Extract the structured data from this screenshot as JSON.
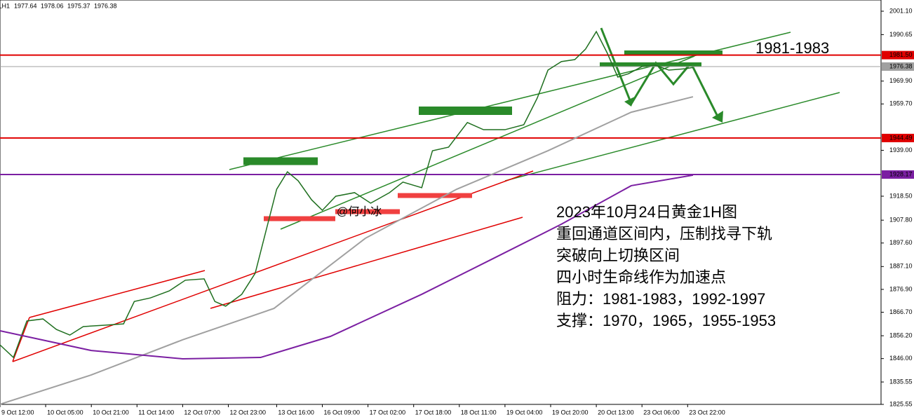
{
  "chart_data": {
    "type": "line",
    "header": {
      "label": ",H1",
      "ohlc": [
        1977.64,
        1978.06,
        1975.37,
        1976.38
      ]
    },
    "xlim": [
      0,
      328
    ],
    "ylim": [
      1825.55,
      2001.1
    ],
    "xticks": [
      {
        "value": 0,
        "label": "9 Oct 12:00"
      },
      {
        "value": 17,
        "label": "10 Oct 05:00"
      },
      {
        "value": 34,
        "label": "10 Oct 21:00"
      },
      {
        "value": 51,
        "label": "11 Oct 14:00"
      },
      {
        "value": 68,
        "label": "12 Oct 07:00"
      },
      {
        "value": 85,
        "label": "12 Oct 23:00"
      },
      {
        "value": 103,
        "label": "13 Oct 16:00"
      },
      {
        "value": 120,
        "label": "16 Oct 09:00"
      },
      {
        "value": 137,
        "label": "17 Oct 02:00"
      },
      {
        "value": 154,
        "label": "17 Oct 18:00"
      },
      {
        "value": 171,
        "label": "18 Oct 11:00"
      },
      {
        "value": 188,
        "label": "19 Oct 04:00"
      },
      {
        "value": 205,
        "label": "19 Oct 20:00"
      },
      {
        "value": 222,
        "label": "20 Oct 13:00"
      },
      {
        "value": 239,
        "label": "23 Oct 06:00"
      },
      {
        "value": 256,
        "label": "23 Oct 22:00"
      }
    ],
    "yticks": [
      {
        "value": 2001.1,
        "label": "2001.10"
      },
      {
        "value": 1990.65,
        "label": "1990.65"
      },
      {
        "value": 1969.9,
        "label": "1969.90"
      },
      {
        "value": 1959.7,
        "label": "1959.70"
      },
      {
        "value": 1939.0,
        "label": "1939.00"
      },
      {
        "value": 1918.5,
        "label": "1918.50"
      },
      {
        "value": 1907.8,
        "label": "1907.80"
      },
      {
        "value": 1897.6,
        "label": "1897.60"
      },
      {
        "value": 1887.1,
        "label": "1887.10"
      },
      {
        "value": 1876.9,
        "label": "1876.90"
      },
      {
        "value": 1866.7,
        "label": "1866.70"
      },
      {
        "value": 1856.2,
        "label": "1856.20"
      },
      {
        "value": 1846.0,
        "label": "1846.00"
      },
      {
        "value": 1835.55,
        "label": "1835.55"
      },
      {
        "value": 1825.55,
        "label": "1825.55"
      }
    ],
    "levels": [
      {
        "value": 1981.5,
        "label": "1981.50",
        "color": "#e00000"
      },
      {
        "value": 1976.38,
        "label": "1976.38",
        "color": "#a0a0a0"
      },
      {
        "value": 1944.49,
        "label": "1944.49",
        "color": "#e00000"
      },
      {
        "value": 1928.17,
        "label": "1928.17",
        "color": "#7b1fa2"
      }
    ],
    "series": [
      {
        "color": "#1f6f1f",
        "x": [
          0,
          5,
          10,
          16,
          21,
          26,
          31,
          39,
          46,
          50,
          56,
          63,
          69,
          76,
          80,
          84,
          90,
          95,
          99,
          103,
          107,
          111,
          116,
          120,
          125,
          132,
          138,
          145,
          150,
          157,
          161,
          167,
          174,
          180,
          188,
          195,
          200,
          204,
          209,
          214,
          218,
          222,
          226,
          230,
          234,
          239,
          244,
          249,
          255,
          258
        ],
        "values": [
          1852.1,
          1846.5,
          1862.8,
          1863.7,
          1859.0,
          1856.5,
          1860.3,
          1860.9,
          1861.5,
          1871.5,
          1873.1,
          1876.2,
          1881.0,
          1881.6,
          1871.5,
          1869.4,
          1874.7,
          1884.1,
          1902.9,
          1921.6,
          1929.4,
          1925.4,
          1916.9,
          1912.2,
          1918.5,
          1920.1,
          1915.4,
          1920.1,
          1924.8,
          1922.3,
          1938.8,
          1940.4,
          1951.4,
          1948.2,
          1948.2,
          1950.4,
          1962.3,
          1974.8,
          1978.6,
          1979.5,
          1984.2,
          1992.0,
          1982.6,
          1971.7,
          1973.2,
          1976.4,
          1977.0,
          1974.8,
          1975.4,
          1976.0
        ]
      },
      {
        "color": "#a0a0a0",
        "x": [
          0,
          34,
          68,
          102,
          136,
          170,
          204,
          235,
          258
        ],
        "values": [
          1825.6,
          1838.7,
          1854.4,
          1868.4,
          1899.7,
          1921.6,
          1938.8,
          1956.0,
          1962.9
        ]
      },
      {
        "color": "#7b1fa2",
        "x": [
          0,
          34,
          68,
          97,
          123,
          157,
          183,
          209,
          235,
          258
        ],
        "values": [
          1858.4,
          1849.6,
          1845.9,
          1846.5,
          1855.9,
          1874.7,
          1890.3,
          1906.0,
          1923.2,
          1927.9
        ]
      }
    ],
    "annotations": [
      "1981-1983",
      "@何小冰"
    ],
    "notes": [
      "2023年10月24日黄金1H图",
      "重回通道区间内，压制找寻下轨",
      "突破向上切换区间",
      "四小时生命线作为加速点",
      "阻力：1981-1983，1992-1997",
      "支撑：1970，1965，1955-1953"
    ]
  }
}
